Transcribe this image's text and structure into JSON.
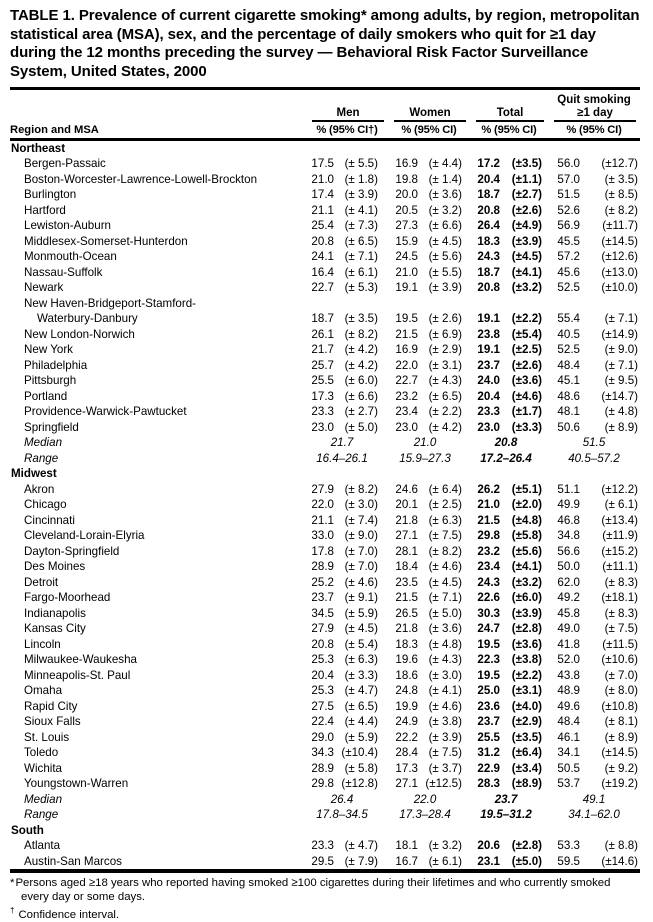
{
  "title": "TABLE 1. Prevalence of current cigarette smoking* among adults, by region, metropolitan statistical area (MSA), sex, and the percentage of daily smokers who quit for ≥1 day during the 12 months preceding the survey — Behavioral Risk Factor Surveillance System, United States, 2000",
  "table": {
    "region_col_header": "Region and MSA",
    "quit_group_top_label": "Quit smoking",
    "groups": [
      {
        "label": "Men",
        "sub_header": "%  (95% CI†)"
      },
      {
        "label": "Women",
        "sub_header": "%  (95% CI)"
      },
      {
        "label": "Total",
        "sub_header": "%  (95% CI)"
      },
      {
        "label": "≥1 day",
        "sub_header": "%  (95% CI)"
      }
    ],
    "sections": [
      {
        "name": "Northeast",
        "rows": [
          {
            "label": "Bergen-Passaic",
            "cells": [
              "17.5",
              "(± 5.5)",
              "16.9",
              "(± 4.4)",
              "17.2",
              "(±3.5)",
              "56.0",
              "(±12.7)"
            ]
          },
          {
            "label": "Boston-Worcester-Lawrence-Lowell-Brockton",
            "cells": [
              "21.0",
              "(± 1.8)",
              "19.8",
              "(± 1.4)",
              "20.4",
              "(±1.1)",
              "57.0",
              "(± 3.5)"
            ]
          },
          {
            "label": "Burlington",
            "cells": [
              "17.4",
              "(± 3.9)",
              "20.0",
              "(± 3.6)",
              "18.7",
              "(±2.7)",
              "51.5",
              "(± 8.5)"
            ]
          },
          {
            "label": "Hartford",
            "cells": [
              "21.1",
              "(± 4.1)",
              "20.5",
              "(± 3.2)",
              "20.8",
              "(±2.6)",
              "52.6",
              "(± 8.2)"
            ]
          },
          {
            "label": "Lewiston-Auburn",
            "cells": [
              "25.4",
              "(± 7.3)",
              "27.3",
              "(± 6.6)",
              "26.4",
              "(±4.9)",
              "56.9",
              "(±11.7)"
            ]
          },
          {
            "label": "Middlesex-Somerset-Hunterdon",
            "cells": [
              "20.8",
              "(± 6.5)",
              "15.9",
              "(± 4.5)",
              "18.3",
              "(±3.9)",
              "45.5",
              "(±14.5)"
            ]
          },
          {
            "label": "Monmouth-Ocean",
            "cells": [
              "24.1",
              "(± 7.1)",
              "24.5",
              "(± 5.6)",
              "24.3",
              "(±4.5)",
              "57.2",
              "(±12.6)"
            ]
          },
          {
            "label": "Nassau-Suffolk",
            "cells": [
              "16.4",
              "(± 6.1)",
              "21.0",
              "(± 5.5)",
              "18.7",
              "(±4.1)",
              "45.6",
              "(±13.0)"
            ]
          },
          {
            "label": "Newark",
            "cells": [
              "22.7",
              "(± 5.3)",
              "19.1",
              "(± 3.9)",
              "20.8",
              "(±3.2)",
              "52.5",
              "(±10.0)"
            ]
          },
          {
            "label": "New Haven-Bridgeport-Stamford-",
            "label2": "Waterbury-Danbury",
            "cells": [
              "18.7",
              "(± 3.5)",
              "19.5",
              "(± 2.6)",
              "19.1",
              "(±2.2)",
              "55.4",
              "(± 7.1)"
            ]
          },
          {
            "label": "New London-Norwich",
            "cells": [
              "26.1",
              "(± 8.2)",
              "21.5",
              "(± 6.9)",
              "23.8",
              "(±5.4)",
              "40.5",
              "(±14.9)"
            ]
          },
          {
            "label": "New York",
            "cells": [
              "21.7",
              "(± 4.2)",
              "16.9",
              "(± 2.9)",
              "19.1",
              "(±2.5)",
              "52.5",
              "(± 9.0)"
            ]
          },
          {
            "label": "Philadelphia",
            "cells": [
              "25.7",
              "(± 4.2)",
              "22.0",
              "(± 3.1)",
              "23.7",
              "(±2.6)",
              "48.4",
              "(± 7.1)"
            ]
          },
          {
            "label": "Pittsburgh",
            "cells": [
              "25.5",
              "(± 6.0)",
              "22.7",
              "(± 4.3)",
              "24.0",
              "(±3.6)",
              "45.1",
              "(± 9.5)"
            ]
          },
          {
            "label": "Portland",
            "cells": [
              "17.3",
              "(± 6.6)",
              "23.2",
              "(± 6.5)",
              "20.4",
              "(±4.6)",
              "48.6",
              "(±14.7)"
            ]
          },
          {
            "label": "Providence-Warwick-Pawtucket",
            "cells": [
              "23.3",
              "(± 2.7)",
              "23.4",
              "(± 2.2)",
              "23.3",
              "(±1.7)",
              "48.1",
              "(± 4.8)"
            ]
          },
          {
            "label": "Springfield",
            "cells": [
              "23.0",
              "(± 5.0)",
              "23.0",
              "(± 4.2)",
              "23.0",
              "(±3.3)",
              "50.6",
              "(± 8.9)"
            ]
          },
          {
            "type": "median",
            "label": "Median",
            "values": [
              "21.7",
              "21.0",
              "20.8",
              "51.5"
            ]
          },
          {
            "type": "range",
            "label": "Range",
            "values": [
              "16.4–26.1",
              "15.9–27.3",
              "17.2–26.4",
              "40.5–57.2"
            ]
          }
        ]
      },
      {
        "name": "Midwest",
        "rows": [
          {
            "label": "Akron",
            "cells": [
              "27.9",
              "(± 8.2)",
              "24.6",
              "(± 6.4)",
              "26.2",
              "(±5.1)",
              "51.1",
              "(±12.2)"
            ]
          },
          {
            "label": "Chicago",
            "cells": [
              "22.0",
              "(± 3.0)",
              "20.1",
              "(± 2.5)",
              "21.0",
              "(±2.0)",
              "49.9",
              "(± 6.1)"
            ]
          },
          {
            "label": "Cincinnati",
            "cells": [
              "21.1",
              "(± 7.4)",
              "21.8",
              "(± 6.3)",
              "21.5",
              "(±4.8)",
              "46.8",
              "(±13.4)"
            ]
          },
          {
            "label": "Cleveland-Lorain-Elyria",
            "cells": [
              "33.0",
              "(± 9.0)",
              "27.1",
              "(± 7.5)",
              "29.8",
              "(±5.8)",
              "34.8",
              "(±11.9)"
            ]
          },
          {
            "label": "Dayton-Springfield",
            "cells": [
              "17.8",
              "(± 7.0)",
              "28.1",
              "(± 8.2)",
              "23.2",
              "(±5.6)",
              "56.6",
              "(±15.2)"
            ]
          },
          {
            "label": "Des Moines",
            "cells": [
              "28.9",
              "(± 7.0)",
              "18.4",
              "(± 4.6)",
              "23.4",
              "(±4.1)",
              "50.0",
              "(±11.1)"
            ]
          },
          {
            "label": "Detroit",
            "cells": [
              "25.2",
              "(± 4.6)",
              "23.5",
              "(± 4.5)",
              "24.3",
              "(±3.2)",
              "62.0",
              "(± 8.3)"
            ]
          },
          {
            "label": "Fargo-Moorhead",
            "cells": [
              "23.7",
              "(± 9.1)",
              "21.5",
              "(± 7.1)",
              "22.6",
              "(±6.0)",
              "49.2",
              "(±18.1)"
            ]
          },
          {
            "label": "Indianapolis",
            "cells": [
              "34.5",
              "(± 5.9)",
              "26.5",
              "(± 5.0)",
              "30.3",
              "(±3.9)",
              "45.8",
              "(± 8.3)"
            ]
          },
          {
            "label": "Kansas City",
            "cells": [
              "27.9",
              "(± 4.5)",
              "21.8",
              "(± 3.6)",
              "24.7",
              "(±2.8)",
              "49.0",
              "(± 7.5)"
            ]
          },
          {
            "label": "Lincoln",
            "cells": [
              "20.8",
              "(± 5.4)",
              "18.3",
              "(± 4.8)",
              "19.5",
              "(±3.6)",
              "41.8",
              "(±11.5)"
            ]
          },
          {
            "label": "Milwaukee-Waukesha",
            "cells": [
              "25.3",
              "(± 6.3)",
              "19.6",
              "(± 4.3)",
              "22.3",
              "(±3.8)",
              "52.0",
              "(±10.6)"
            ]
          },
          {
            "label": "Minneapolis-St. Paul",
            "cells": [
              "20.4",
              "(± 3.3)",
              "18.6",
              "(± 3.0)",
              "19.5",
              "(±2.2)",
              "43.8",
              "(± 7.0)"
            ]
          },
          {
            "label": "Omaha",
            "cells": [
              "25.3",
              "(± 4.7)",
              "24.8",
              "(± 4.1)",
              "25.0",
              "(±3.1)",
              "48.9",
              "(± 8.0)"
            ]
          },
          {
            "label": "Rapid City",
            "cells": [
              "27.5",
              "(± 6.5)",
              "19.9",
              "(± 4.6)",
              "23.6",
              "(±4.0)",
              "49.6",
              "(±10.8)"
            ]
          },
          {
            "label": "Sioux Falls",
            "cells": [
              "22.4",
              "(± 4.4)",
              "24.9",
              "(± 3.8)",
              "23.7",
              "(±2.9)",
              "48.4",
              "(± 8.1)"
            ]
          },
          {
            "label": "St. Louis",
            "cells": [
              "29.0",
              "(± 5.9)",
              "22.2",
              "(± 3.9)",
              "25.5",
              "(±3.5)",
              "46.1",
              "(± 8.9)"
            ]
          },
          {
            "label": "Toledo",
            "cells": [
              "34.3",
              "(±10.4)",
              "28.4",
              "(± 7.5)",
              "31.2",
              "(±6.4)",
              "34.1",
              "(±14.5)"
            ]
          },
          {
            "label": "Wichita",
            "cells": [
              "28.9",
              "(± 5.8)",
              "17.3",
              "(± 3.7)",
              "22.9",
              "(±3.4)",
              "50.5",
              "(± 9.2)"
            ]
          },
          {
            "label": "Youngstown-Warren",
            "cells": [
              "29.8",
              "(±12.8)",
              "27.1",
              "(±12.5)",
              "28.3",
              "(±8.9)",
              "53.7",
              "(±19.2)"
            ]
          },
          {
            "type": "median",
            "label": "Median",
            "values": [
              "26.4",
              "22.0",
              "23.7",
              "49.1"
            ]
          },
          {
            "type": "range",
            "label": "Range",
            "values": [
              "17.8–34.5",
              "17.3–28.4",
              "19.5–31.2",
              "34.1–62.0"
            ]
          }
        ]
      },
      {
        "name": "South",
        "rows": [
          {
            "label": "Atlanta",
            "cells": [
              "23.3",
              "(± 4.7)",
              "18.1",
              "(± 3.2)",
              "20.6",
              "(±2.8)",
              "53.3",
              "(± 8.8)"
            ]
          },
          {
            "label": "Austin-San Marcos",
            "cells": [
              "29.5",
              "(± 7.9)",
              "16.7",
              "(± 6.1)",
              "23.1",
              "(±5.0)",
              "59.5",
              "(±14.6)"
            ]
          }
        ]
      }
    ]
  },
  "footnotes": [
    {
      "marker": "*",
      "text": "Persons aged ≥18 years who reported having smoked ≥100 cigarettes  during their lifetimes and who currently smoked every day or some days."
    },
    {
      "marker": "†",
      "text": "Confidence interval."
    }
  ]
}
